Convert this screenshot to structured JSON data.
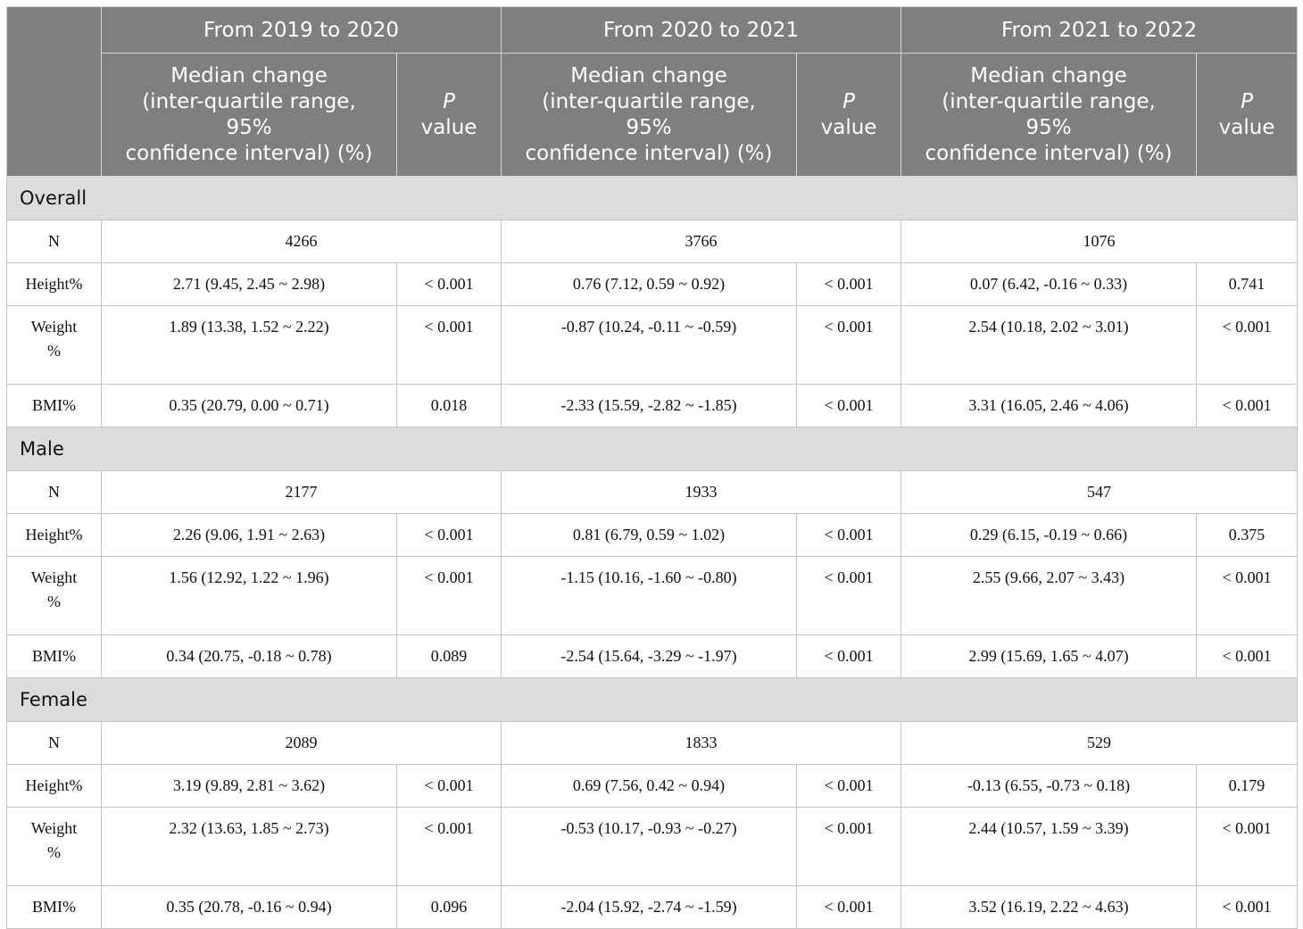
{
  "header": {
    "periods": [
      "From 2019 to 2020",
      "From 2020 to 2021",
      "From 2021 to 2022"
    ],
    "median_line1": "Median change",
    "median_line2": "(inter-quartile range,",
    "median_line3": "95%",
    "median_line4": "confidence interval) (%)",
    "p_label_italic": "P",
    "p_label_rest": "value"
  },
  "groups": [
    {
      "name": "Overall",
      "n_label": "N",
      "n": [
        "4266",
        "3766",
        "1076"
      ],
      "height": {
        "label": "Height%",
        "values": [
          "2.71 (9.45, 2.45 ~ 2.98)",
          "< 0.001",
          "0.76 (7.12, 0.59 ~ 0.92)",
          "< 0.001",
          "0.07 (6.42, -0.16 ~ 0.33)",
          "0.741"
        ]
      },
      "weight": {
        "label1": "Weight",
        "label2": "%",
        "values": [
          "1.89 (13.38, 1.52 ~ 2.22)",
          "< 0.001",
          "-0.87 (10.24, -0.11 ~ -0.59)",
          "< 0.001",
          "2.54 (10.18, 2.02 ~ 3.01)",
          "< 0.001"
        ]
      },
      "bmi": {
        "label": "BMI%",
        "values": [
          "0.35 (20.79, 0.00 ~ 0.71)",
          "0.018",
          "-2.33 (15.59, -2.82 ~ -1.85)",
          "< 0.001",
          "3.31 (16.05, 2.46 ~ 4.06)",
          "< 0.001"
        ]
      }
    },
    {
      "name": "Male",
      "n_label": "N",
      "n": [
        "2177",
        "1933",
        "547"
      ],
      "height": {
        "label": "Height%",
        "values": [
          "2.26 (9.06, 1.91 ~ 2.63)",
          "< 0.001",
          "0.81 (6.79, 0.59 ~ 1.02)",
          "< 0.001",
          "0.29 (6.15, -0.19 ~ 0.66)",
          "0.375"
        ]
      },
      "weight": {
        "label1": "Weight",
        "label2": "%",
        "values": [
          "1.56 (12.92, 1.22 ~ 1.96)",
          "< 0.001",
          "-1.15 (10.16, -1.60 ~ -0.80)",
          "< 0.001",
          "2.55 (9.66, 2.07 ~ 3.43)",
          "< 0.001"
        ]
      },
      "bmi": {
        "label": "BMI%",
        "values": [
          "0.34 (20.75, -0.18 ~ 0.78)",
          "0.089",
          "-2.54 (15.64, -3.29 ~ -1.97)",
          "< 0.001",
          "2.99 (15.69, 1.65 ~ 4.07)",
          "< 0.001"
        ]
      }
    },
    {
      "name": "Female",
      "n_label": "N",
      "n": [
        "2089",
        "1833",
        "529"
      ],
      "height": {
        "label": "Height%",
        "values": [
          "3.19 (9.89, 2.81 ~ 3.62)",
          "< 0.001",
          "0.69 (7.56, 0.42 ~ 0.94)",
          "< 0.001",
          "-0.13 (6.55, -0.73 ~ 0.18)",
          "0.179"
        ]
      },
      "weight": {
        "label1": "Weight",
        "label2": "%",
        "values": [
          "2.32 (13.63, 1.85 ~ 2.73)",
          "< 0.001",
          "-0.53 (10.17, -0.93 ~ -0.27)",
          "< 0.001",
          "2.44 (10.57, 1.59 ~ 3.39)",
          "< 0.001"
        ]
      },
      "bmi": {
        "label": "BMI%",
        "values": [
          "0.35 (20.78, -0.16 ~ 0.94)",
          "0.096",
          "-2.04 (15.92, -2.74 ~ -1.59)",
          "< 0.001",
          "3.52 (16.19, 2.22 ~ 4.63)",
          "< 0.001"
        ]
      }
    }
  ]
}
